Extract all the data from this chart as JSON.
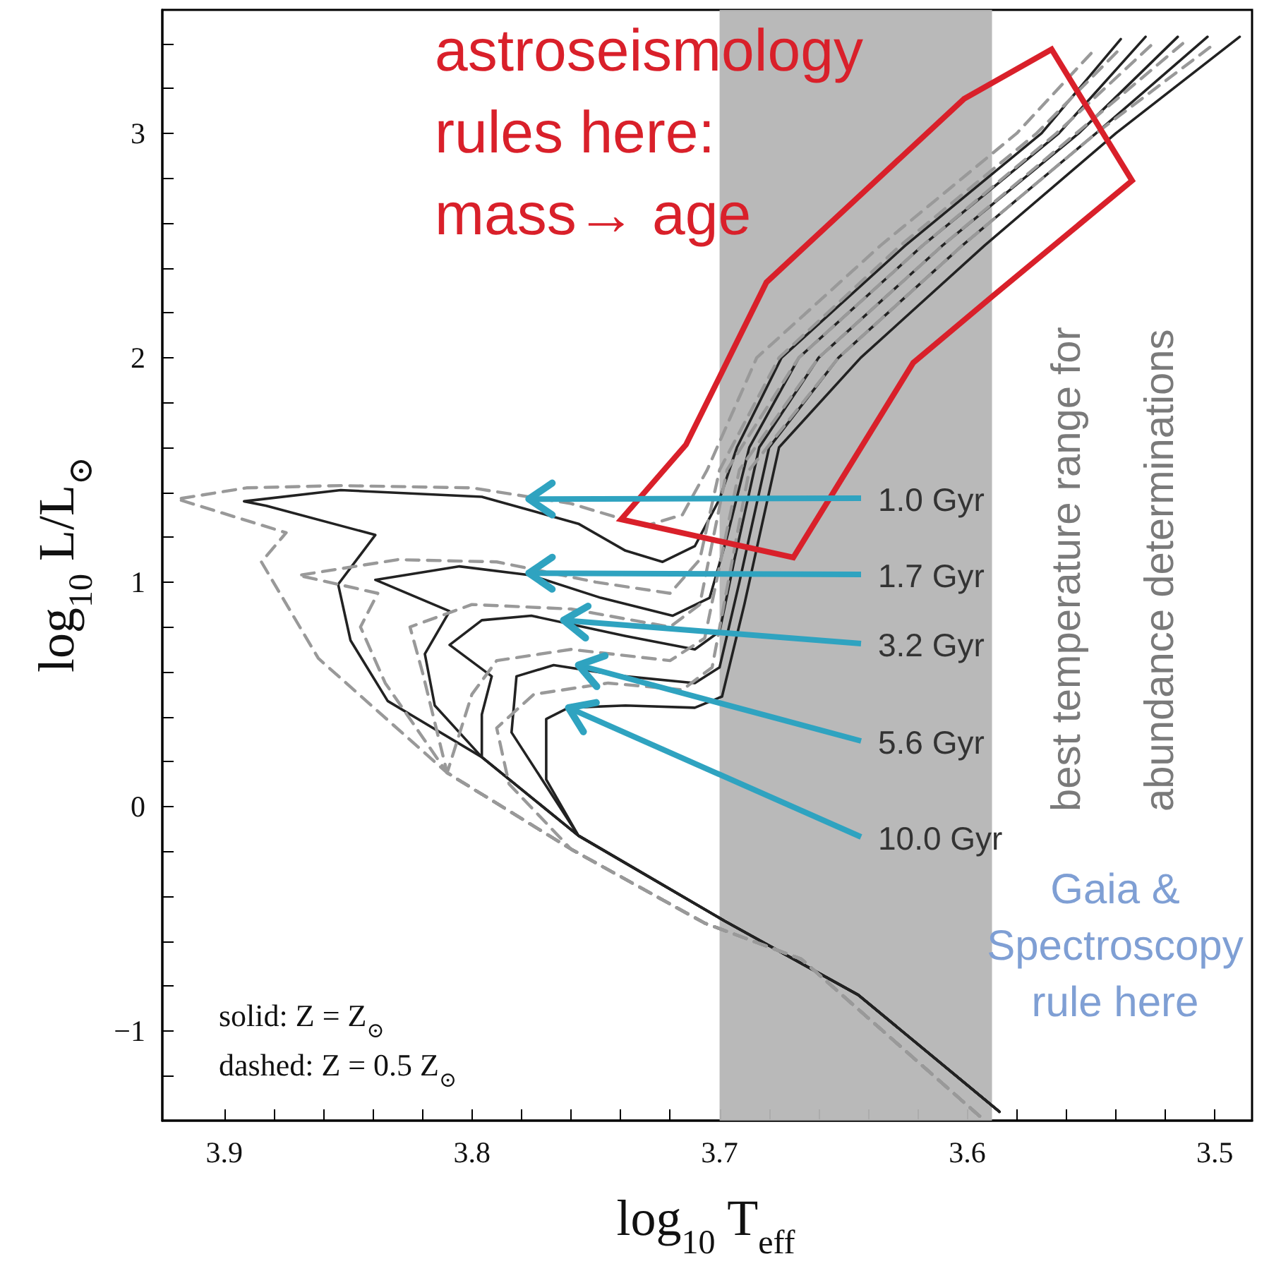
{
  "chart_data": {
    "type": "line",
    "xlabel": "log$_{10}$ T$_{eff}$",
    "ylabel": "log$_{10}$ L/L$_{⊙}$",
    "xlim": [
      3.925,
      3.485
    ],
    "ylim": [
      -1.4,
      3.55
    ],
    "xticks": [
      3.9,
      {
        "value": 3.88,
        "label": null
      },
      {
        "value": 3.86,
        "label": null
      },
      {
        "value": 3.84,
        "label": null
      },
      {
        "value": 3.82,
        "label": null
      },
      3.8,
      {
        "value": 3.78,
        "label": null
      },
      {
        "value": 3.76,
        "label": null
      },
      {
        "value": 3.74,
        "label": null
      },
      {
        "value": 3.72,
        "label": null
      },
      3.7,
      {
        "value": 3.68,
        "label": null
      },
      {
        "value": 3.66,
        "label": null
      },
      {
        "value": 3.64,
        "label": null
      },
      {
        "value": 3.62,
        "label": null
      },
      3.6,
      {
        "value": 3.58,
        "label": null
      },
      {
        "value": 3.56,
        "label": null
      },
      {
        "value": 3.54,
        "label": null
      },
      {
        "value": 3.52,
        "label": null
      },
      3.5
    ],
    "yticks": [
      {
        "value": -1.2,
        "label": null
      },
      {
        "value": -1,
        "label": "−1"
      },
      {
        "value": -0.8,
        "label": null
      },
      {
        "value": -0.6,
        "label": null
      },
      {
        "value": -0.4,
        "label": null
      },
      {
        "value": -0.2,
        "label": null
      },
      0,
      {
        "value": 0.2,
        "label": null
      },
      {
        "value": 0.4,
        "label": null
      },
      {
        "value": 0.6,
        "label": null
      },
      {
        "value": 0.8,
        "label": null
      },
      1,
      {
        "value": 1.2,
        "label": null
      },
      {
        "value": 1.4,
        "label": null
      },
      {
        "value": 1.6,
        "label": null
      },
      {
        "value": 1.8,
        "label": null
      },
      2,
      {
        "value": 2.2,
        "label": null
      },
      {
        "value": 2.4,
        "label": null
      },
      {
        "value": 2.6,
        "label": null
      },
      {
        "value": 2.8,
        "label": null
      },
      3,
      {
        "value": 3.2,
        "label": null
      },
      {
        "value": 3.4,
        "label": null
      }
    ],
    "grid": false,
    "marker": "none",
    "bands": [
      {
        "axis": "x",
        "from": 3.7,
        "to": 3.59,
        "label": "best temperature range for\nabundance determinations",
        "color": "#b5b5b5"
      }
    ],
    "annotations": [
      {
        "text": "1.0 Gyr",
        "x": 3.777,
        "y": 1.37
      },
      {
        "text": "1.7 Gyr",
        "x": 3.777,
        "y": 1.04
      },
      {
        "text": "3.2 Gyr",
        "x": 3.763,
        "y": 0.83
      },
      {
        "text": "5.6 Gyr",
        "x": 3.757,
        "y": 0.63
      },
      {
        "text": "10.0 Gyr",
        "x": 3.761,
        "y": 0.44
      },
      "astroseismology\nrules here:\nmass→ age",
      "Gaia &\nSpectroscopy\nrule here",
      "solid:  Z = Z$_{⊙}$",
      "dashed:  Z = 0.5 Z$_{⊙}$"
    ],
    "series": [
      {
        "color": "#222222",
        "line_style": "solid",
        "x": [
          3.587,
          3.644,
          3.698,
          3.757,
          3.796,
          3.834,
          3.849,
          3.854,
          3.839,
          3.883,
          3.892,
          3.853,
          3.796,
          3.757,
          3.738,
          3.723,
          3.71,
          3.7,
          3.693,
          3.675,
          3.625,
          3.57,
          3.538
        ],
        "values": [
          -1.36,
          -0.84,
          -0.51,
          -0.13,
          0.22,
          0.47,
          0.74,
          0.99,
          1.21,
          1.34,
          1.36,
          1.41,
          1.38,
          1.26,
          1.14,
          1.09,
          1.16,
          1.37,
          1.6,
          2.0,
          2.5,
          3.0,
          3.42
        ]
      },
      {
        "color": "#222222",
        "line_style": "solid",
        "x": [
          3.587,
          3.644,
          3.698,
          3.757,
          3.796,
          3.815,
          3.819,
          3.809,
          3.839,
          3.805,
          3.776,
          3.748,
          3.719,
          3.704,
          3.697,
          3.688,
          3.668,
          3.618,
          3.563,
          3.528
        ],
        "values": [
          -1.36,
          -0.84,
          -0.51,
          -0.13,
          0.22,
          0.45,
          0.68,
          0.87,
          1.01,
          1.07,
          1.03,
          0.93,
          0.85,
          0.93,
          1.2,
          1.6,
          2.0,
          2.5,
          3.0,
          3.43
        ]
      },
      {
        "color": "#222222",
        "line_style": "solid",
        "x": [
          3.587,
          3.644,
          3.698,
          3.757,
          3.796,
          3.796,
          3.792,
          3.809,
          3.796,
          3.776,
          3.738,
          3.71,
          3.7,
          3.694,
          3.684,
          3.66,
          3.61,
          3.555,
          3.515
        ],
        "values": [
          -1.36,
          -0.84,
          -0.51,
          -0.13,
          0.22,
          0.41,
          0.58,
          0.72,
          0.83,
          0.85,
          0.76,
          0.7,
          0.78,
          1.1,
          1.6,
          2.0,
          2.5,
          3.0,
          3.43
        ]
      },
      {
        "color": "#222222",
        "line_style": "solid",
        "x": [
          3.587,
          3.644,
          3.698,
          3.757,
          3.784,
          3.782,
          3.767,
          3.738,
          3.71,
          3.7,
          3.692,
          3.68,
          3.652,
          3.602,
          3.548,
          3.503
        ],
        "values": [
          -1.36,
          -0.84,
          -0.51,
          -0.13,
          0.33,
          0.58,
          0.63,
          0.58,
          0.55,
          0.62,
          1.0,
          1.6,
          2.0,
          2.5,
          3.0,
          3.43
        ]
      },
      {
        "color": "#222222",
        "line_style": "solid",
        "x": [
          3.587,
          3.644,
          3.698,
          3.757,
          3.77,
          3.77,
          3.77,
          3.761,
          3.738,
          3.71,
          3.699,
          3.69,
          3.676,
          3.643,
          3.593,
          3.54,
          3.49
        ],
        "values": [
          -1.36,
          -0.84,
          -0.51,
          -0.13,
          0.12,
          0.24,
          0.39,
          0.44,
          0.45,
          0.44,
          0.49,
          0.9,
          1.6,
          2.0,
          2.5,
          3.0,
          3.43
        ]
      },
      {
        "color": "#999999",
        "line_style": "dashed",
        "x": [
          3.595,
          3.667,
          3.706,
          3.76,
          3.81,
          3.862,
          3.885,
          3.875,
          3.919,
          3.891,
          3.853,
          3.8,
          3.76,
          3.73,
          3.715,
          3.705,
          3.685,
          3.635,
          3.58,
          3.548
        ],
        "values": [
          -1.38,
          -0.68,
          -0.52,
          -0.19,
          0.15,
          0.66,
          1.09,
          1.22,
          1.37,
          1.42,
          1.43,
          1.42,
          1.35,
          1.25,
          1.3,
          1.5,
          2.0,
          2.5,
          3.0,
          3.38
        ]
      },
      {
        "color": "#999999",
        "line_style": "dashed",
        "x": [
          3.595,
          3.667,
          3.706,
          3.76,
          3.81,
          3.835,
          3.845,
          3.838,
          3.87,
          3.83,
          3.79,
          3.75,
          3.72,
          3.708,
          3.7,
          3.676,
          3.627,
          3.572,
          3.538
        ],
        "values": [
          -1.38,
          -0.68,
          -0.52,
          -0.19,
          0.15,
          0.55,
          0.8,
          0.95,
          1.03,
          1.1,
          1.09,
          1.0,
          0.95,
          1.1,
          1.5,
          2.0,
          2.5,
          3.0,
          3.38
        ]
      },
      {
        "color": "#999999",
        "line_style": "dashed",
        "x": [
          3.595,
          3.667,
          3.706,
          3.76,
          3.81,
          3.82,
          3.825,
          3.8,
          3.76,
          3.72,
          3.708,
          3.697,
          3.668,
          3.618,
          3.564,
          3.525
        ],
        "values": [
          -1.38,
          -0.68,
          -0.52,
          -0.19,
          0.15,
          0.6,
          0.8,
          0.9,
          0.88,
          0.8,
          0.9,
          1.5,
          2.0,
          2.5,
          3.0,
          3.4
        ]
      },
      {
        "color": "#999999",
        "line_style": "dashed",
        "x": [
          3.595,
          3.667,
          3.706,
          3.76,
          3.81,
          3.8,
          3.79,
          3.76,
          3.72,
          3.706,
          3.692,
          3.66,
          3.61,
          3.556,
          3.513
        ],
        "values": [
          -1.38,
          -0.68,
          -0.52,
          -0.19,
          0.15,
          0.5,
          0.65,
          0.7,
          0.65,
          0.75,
          1.5,
          2.0,
          2.5,
          3.0,
          3.4
        ]
      },
      {
        "color": "#999999",
        "line_style": "dashed",
        "x": [
          3.595,
          3.667,
          3.706,
          3.76,
          3.785,
          3.79,
          3.775,
          3.745,
          3.715,
          3.703,
          3.688,
          3.652,
          3.602,
          3.548,
          3.5
        ],
        "values": [
          -1.38,
          -0.68,
          -0.52,
          -0.19,
          0.1,
          0.35,
          0.5,
          0.55,
          0.52,
          0.62,
          1.5,
          2.0,
          2.5,
          3.0,
          3.4
        ]
      }
    ]
  }
}
